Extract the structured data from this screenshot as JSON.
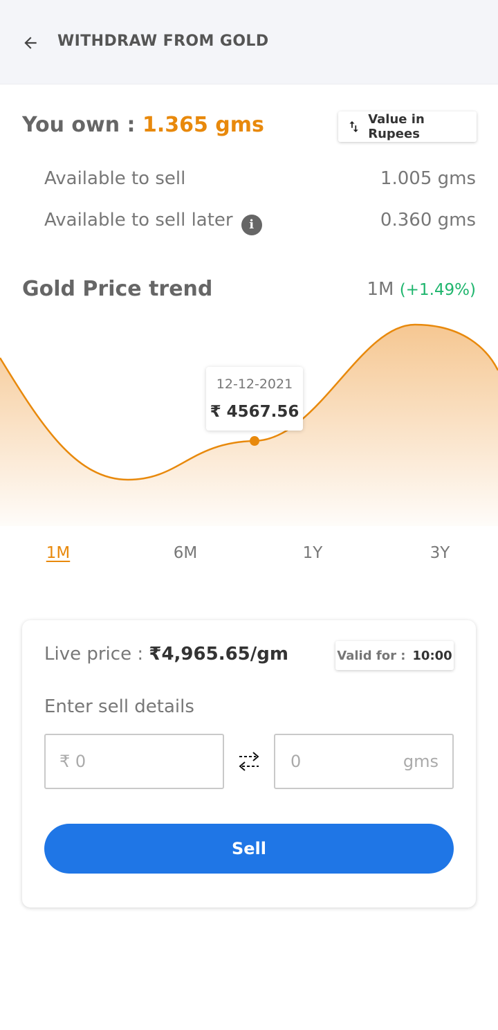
{
  "header": {
    "title": "WITHDRAW FROM GOLD",
    "back_icon": "arrow-left-icon"
  },
  "holdings": {
    "own_label": "You own : ",
    "own_value": "1.365 gms",
    "toggle_label": "Value in Rupees",
    "toggle_icon": "swap-vertical-icon",
    "available_label": "Available to sell",
    "available_value": "1.005 gms",
    "later_label": "Available to sell later",
    "later_info_icon": "info-icon",
    "later_value": "0.360 gms"
  },
  "trend": {
    "title": "Gold Price trend",
    "period": "1M",
    "change": "(+1.49%)"
  },
  "chart_data": {
    "type": "area",
    "tooltip": {
      "date": "12-12-2021",
      "price": "₹ 4567.56"
    },
    "line_color": "#e8890c",
    "fill_color": "#f5c48c"
  },
  "periods": [
    {
      "label": "1M",
      "active": true
    },
    {
      "label": "6M",
      "active": false
    },
    {
      "label": "1Y",
      "active": false
    },
    {
      "label": "3Y",
      "active": false
    }
  ],
  "sell_card": {
    "live_label": "Live price : ",
    "live_value": "₹4,965.65/gm",
    "valid_label": "Valid for :",
    "valid_time": "10:00",
    "details_label": "Enter sell details",
    "rupee_placeholder": "₹ 0",
    "gms_placeholder": "0",
    "gms_unit": "gms",
    "swap_icon": "swap-horizontal-icon",
    "sell_label": "Sell"
  },
  "colors": {
    "accent": "#e8890c",
    "positive": "#1eb56d",
    "primary": "#1f76e6"
  }
}
